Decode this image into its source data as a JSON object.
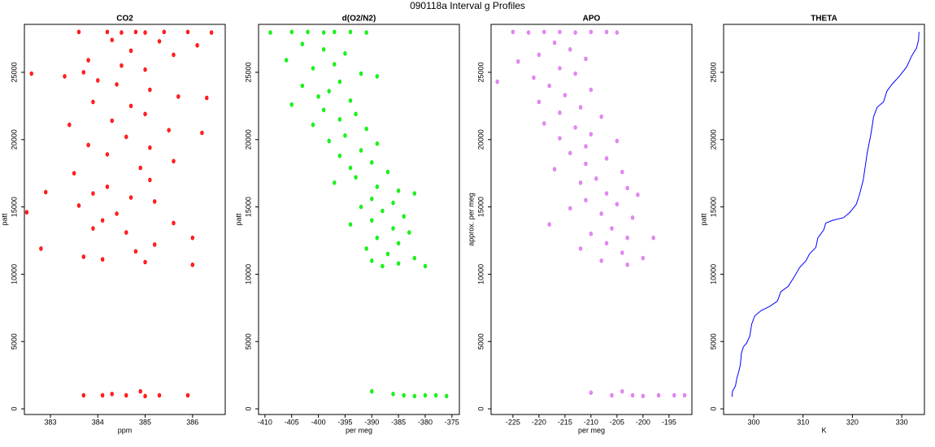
{
  "title": "090118a   Interval g Profiles",
  "chart_data": [
    {
      "type": "scatter",
      "title": "CO2",
      "x_label": "ppm",
      "y_label": "patt",
      "color": "#ff0000",
      "xlim": [
        382.45,
        386.69
      ],
      "xticks": [
        383,
        384,
        385,
        386
      ],
      "ylim": [
        -420,
        28560
      ],
      "yticks": [
        0,
        5000,
        10000,
        15000,
        20000,
        25000
      ],
      "x": [
        383.6,
        384.2,
        384.5,
        384.8,
        385.0,
        385.4,
        385.9,
        386.4,
        384.3,
        385.3,
        386.1,
        384.7,
        385.6,
        383.8,
        384.5,
        385.0,
        383.7,
        382.6,
        383.3,
        384.0,
        384.4,
        385.1,
        385.7,
        386.3,
        383.9,
        384.7,
        385.0,
        384.3,
        383.4,
        385.5,
        386.2,
        384.6,
        383.8,
        385.1,
        384.2,
        385.6,
        384.9,
        383.5,
        385.1,
        384.2,
        383.9,
        382.9,
        384.7,
        385.2,
        383.6,
        382.5,
        384.4,
        384.1,
        385.6,
        383.9,
        384.6,
        386.0,
        385.2,
        384.8,
        383.7,
        384.1,
        382.8,
        385.0,
        386.0,
        383.7,
        384.1,
        384.3,
        384.6,
        385.0,
        385.3,
        385.9,
        384.9
      ],
      "values": [
        28000,
        28000,
        27950,
        28000,
        27950,
        28000,
        28000,
        27950,
        27400,
        27300,
        27000,
        26600,
        26300,
        25900,
        25500,
        25200,
        25000,
        24900,
        24700,
        24400,
        24100,
        23700,
        23200,
        23100,
        22800,
        22500,
        21900,
        21400,
        21100,
        20700,
        20500,
        20200,
        19600,
        19400,
        18900,
        18400,
        17900,
        17500,
        17000,
        16500,
        16000,
        16100,
        15700,
        15400,
        15100,
        14600,
        14500,
        14000,
        13800,
        13400,
        13100,
        12700,
        12200,
        11700,
        11300,
        11100,
        11900,
        10900,
        10700,
        1000,
        1000,
        1100,
        1000,
        950,
        1000,
        1000,
        1300
      ]
    },
    {
      "type": "scatter",
      "title": "d(O2/N2)",
      "x_label": "per meg",
      "y_label": "patt",
      "color": "#00ee00",
      "xlim": [
        -411.2,
        -373.6
      ],
      "xticks": [
        -410,
        -405,
        -400,
        -395,
        -390,
        -385,
        -380,
        -375
      ],
      "ylim": [
        -420,
        28560
      ],
      "yticks": [
        0,
        5000,
        10000,
        15000,
        20000,
        25000
      ],
      "x": [
        -409,
        -405,
        -402,
        -399,
        -397,
        -394,
        -391,
        -403,
        -399,
        -395,
        -406,
        -397,
        -401,
        -392,
        -389,
        -396,
        -403,
        -398,
        -400,
        -394,
        -405,
        -399,
        -393,
        -396,
        -401,
        -391,
        -395,
        -398,
        -389,
        -392,
        -396,
        -390,
        -394,
        -387,
        -393,
        -397,
        -389,
        -385,
        -382,
        -390,
        -386,
        -392,
        -388,
        -384,
        -390,
        -394,
        -386,
        -383,
        -389,
        -385,
        -391,
        -387,
        -382,
        -390,
        -385,
        -380,
        -388,
        -386,
        -384,
        -382,
        -380,
        -378,
        -376,
        -390
      ],
      "values": [
        27950,
        28000,
        28000,
        27950,
        28000,
        28000,
        27950,
        27100,
        26700,
        26400,
        25900,
        25600,
        25300,
        24900,
        24700,
        24300,
        24000,
        23600,
        23200,
        22900,
        22600,
        22200,
        21900,
        21500,
        21100,
        20800,
        20300,
        19900,
        19700,
        19200,
        18800,
        18300,
        17900,
        17600,
        17200,
        16800,
        16500,
        16200,
        16000,
        15600,
        15300,
        15000,
        14700,
        14300,
        14000,
        13700,
        13400,
        13100,
        12700,
        12300,
        11900,
        11500,
        11200,
        11000,
        10800,
        10600,
        10600,
        1100,
        1000,
        950,
        1000,
        1000,
        950,
        1300
      ]
    },
    {
      "type": "scatter",
      "title": "APO",
      "x_label": "per meg",
      "y_label": "approx. per meg",
      "color": "#dd77ee",
      "xlim": [
        -229.2,
        -190.6
      ],
      "xticks": [
        -225,
        -220,
        -215,
        -210,
        -205,
        -200,
        -195
      ],
      "ylim": [
        -420,
        28560
      ],
      "yticks": [
        0,
        5000,
        10000,
        15000,
        20000,
        25000
      ],
      "x": [
        -225,
        -222,
        -219,
        -216,
        -213,
        -210,
        -207,
        -205,
        -217,
        -214,
        -220,
        -211,
        -224,
        -216,
        -213,
        -221,
        -228,
        -218,
        -210,
        -215,
        -220,
        -212,
        -216,
        -208,
        -219,
        -213,
        -210,
        -216,
        -205,
        -211,
        -214,
        -207,
        -211,
        -217,
        -204,
        -209,
        -212,
        -203,
        -207,
        -201,
        -211,
        -205,
        -214,
        -208,
        -202,
        -218,
        -206,
        -210,
        -203,
        -198,
        -207,
        -212,
        -204,
        -200,
        -208,
        -203,
        -210,
        -206,
        -204,
        -202,
        -200,
        -197,
        -194,
        -192
      ],
      "values": [
        28000,
        27950,
        28000,
        28000,
        27950,
        28000,
        28000,
        27950,
        27200,
        26700,
        26300,
        26000,
        25800,
        25300,
        24900,
        24600,
        24300,
        24000,
        23700,
        23300,
        22800,
        22400,
        22000,
        21700,
        21200,
        20900,
        20400,
        20100,
        19900,
        19500,
        19000,
        18600,
        18200,
        17800,
        17600,
        17100,
        16800,
        16400,
        16000,
        15900,
        15500,
        15200,
        14900,
        14500,
        14200,
        13700,
        13400,
        13000,
        12700,
        12700,
        12300,
        11900,
        11600,
        11200,
        11000,
        10700,
        1200,
        1000,
        1300,
        1000,
        950,
        1000,
        1000,
        1000
      ]
    },
    {
      "type": "line",
      "title": "THETA",
      "x_label": "K",
      "y_label": "patt",
      "color": "#0000ff",
      "xlim": [
        293.9,
        334.6
      ],
      "xticks": [
        300,
        310,
        320,
        330
      ],
      "ylim": [
        -420,
        28560
      ],
      "yticks": [
        0,
        5000,
        10000,
        15000,
        20000,
        25000
      ],
      "x": [
        295.6,
        295.7,
        296.3,
        296.6,
        297.0,
        297.3,
        297.5,
        297.9,
        298.6,
        299.2,
        299.6,
        300.2,
        301.5,
        303.2,
        304.8,
        305.5,
        307.0,
        308.2,
        309.3,
        310.6,
        311.3,
        312.6,
        313.0,
        314.2,
        314.6,
        316.0,
        318.2,
        319.5,
        320.8,
        321.5,
        322.2,
        322.6,
        323.0,
        323.8,
        324.3,
        325.0,
        326.3,
        327.0,
        328.0,
        329.5,
        331.0,
        332.0,
        333.0,
        333.4,
        333.5
      ],
      "values": [
        900,
        1300,
        1700,
        2300,
        2800,
        3300,
        4100,
        4600,
        4900,
        5400,
        6300,
        6900,
        7300,
        7600,
        8000,
        8700,
        9100,
        9800,
        10500,
        11000,
        11500,
        12000,
        12700,
        13300,
        13800,
        14000,
        14200,
        14600,
        15200,
        16000,
        17000,
        18000,
        19000,
        20500,
        21700,
        22400,
        22800,
        23600,
        24100,
        24700,
        25400,
        26200,
        26800,
        27400,
        28000
      ]
    }
  ]
}
